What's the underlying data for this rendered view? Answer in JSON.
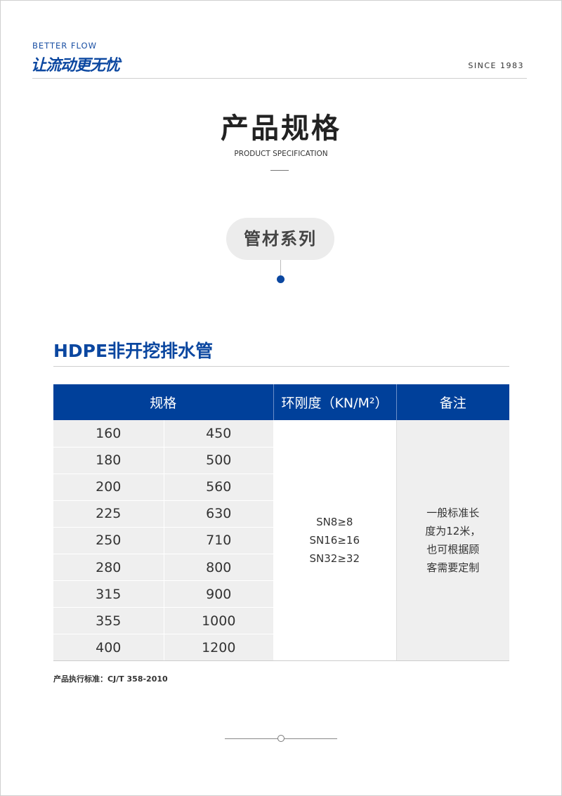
{
  "header": {
    "brand_en": "BETTER FLOW",
    "brand_cn": "让流动更无忧",
    "since": "SINCE 1983"
  },
  "title": {
    "cn": "产品规格",
    "en": "PRODUCT SPECIFICATION"
  },
  "series_pill": "管材系列",
  "section_title": "HDPE非开挖排水管",
  "table": {
    "headers": [
      "规格",
      "环刚度（KN/M²）",
      "备注"
    ],
    "rows": [
      [
        "160",
        "450"
      ],
      [
        "180",
        "500"
      ],
      [
        "200",
        "560"
      ],
      [
        "225",
        "630"
      ],
      [
        "250",
        "710"
      ],
      [
        "280",
        "800"
      ],
      [
        "315",
        "900"
      ],
      [
        "355",
        "1000"
      ],
      [
        "400",
        "1200"
      ]
    ],
    "ring_stiffness": [
      "SN8≥8",
      "SN16≥16",
      "SN32≥32"
    ],
    "note": [
      "一般标准长",
      "度为12米，",
      "也可根据顾",
      "客需要定制"
    ]
  },
  "standard": "产品执行标准：CJ/T 358-2010",
  "colors": {
    "accent": "#00409a"
  }
}
